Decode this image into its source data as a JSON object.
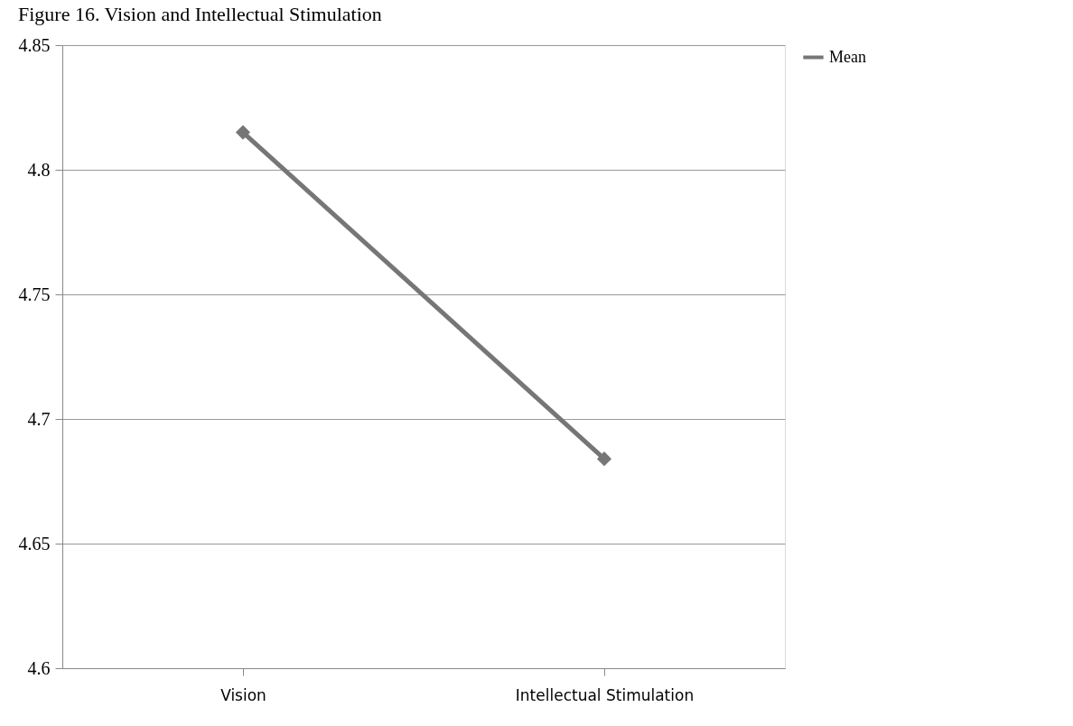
{
  "chart_data": {
    "type": "line",
    "title": "Figure 16.  Vision and Intellectual Stimulation",
    "categories": [
      "Vision",
      "Intellectual Stimulation"
    ],
    "series": [
      {
        "name": "Mean",
        "color": "#767676",
        "values": [
          4.815,
          4.684
        ]
      }
    ],
    "ylim": [
      4.6,
      4.85
    ],
    "yticks": [
      4.6,
      4.65,
      4.7,
      4.75,
      4.8,
      4.85
    ],
    "grid": "y",
    "legend": "right",
    "marker": "diamond",
    "line_style": "solid"
  }
}
